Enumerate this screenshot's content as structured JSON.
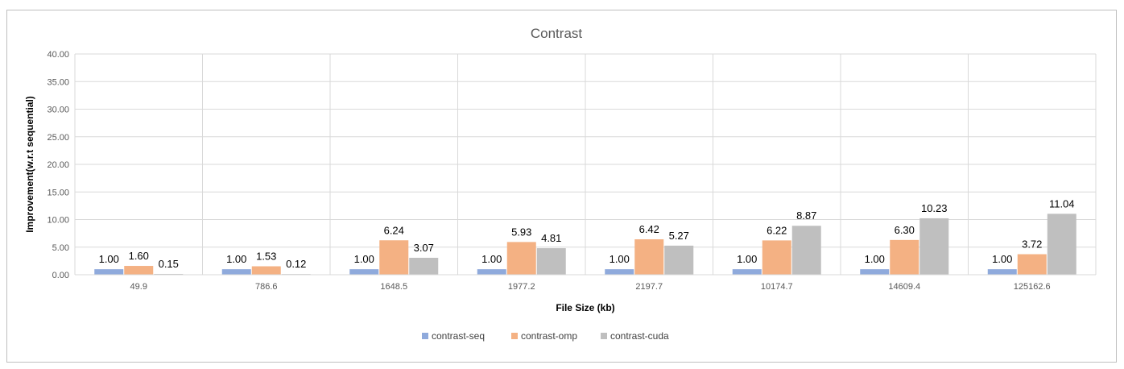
{
  "chart_data": {
    "type": "bar",
    "title": "Contrast",
    "xlabel": "File Size (kb)",
    "ylabel": "Improvement(w.r.t sequential)",
    "categories": [
      "49.9",
      "786.6",
      "1648.5",
      "1977.2",
      "2197.7",
      "10174.7",
      "14609.4",
      "125162.6"
    ],
    "series": [
      {
        "name": "contrast-seq",
        "color": "#8faadc",
        "values": [
          1.0,
          1.0,
          1.0,
          1.0,
          1.0,
          1.0,
          1.0,
          1.0
        ]
      },
      {
        "name": "contrast-omp",
        "color": "#f4b183",
        "values": [
          1.6,
          1.53,
          6.24,
          5.93,
          6.42,
          6.22,
          6.3,
          3.72
        ]
      },
      {
        "name": "contrast-cuda",
        "color": "#bfbfbf",
        "values": [
          0.15,
          0.12,
          3.07,
          4.81,
          5.27,
          8.87,
          10.23,
          11.04
        ]
      }
    ],
    "ylim": [
      0,
      40
    ],
    "yticks": [
      "0.00",
      "5.00",
      "10.00",
      "15.00",
      "20.00",
      "25.00",
      "30.00",
      "35.00",
      "40.00"
    ],
    "value_format_decimals": 2,
    "grid": true,
    "legend_position": "bottom"
  }
}
